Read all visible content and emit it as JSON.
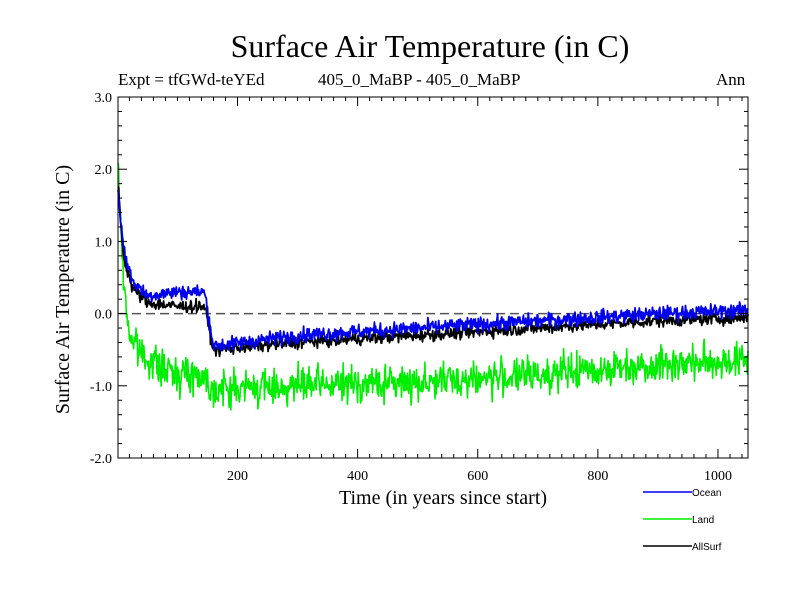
{
  "chart_data": {
    "type": "line",
    "title": "Surface Air Temperature (in C)",
    "experiment_label": "Expt = tfGWd-teYEd",
    "comparison_label": "405_0_MaBP - 405_0_MaBP",
    "season_label": "Ann",
    "xlabel": "Time (in years since start)",
    "ylabel": "Surface Air Temperature (in C)",
    "xlim": [
      1,
      1050
    ],
    "ylim": [
      -2.0,
      3.0
    ],
    "x_ticks": [
      200,
      400,
      600,
      800,
      1000
    ],
    "x_tick_labels": [
      "200",
      "400",
      "600",
      "800",
      "1000"
    ],
    "y_ticks": [
      -2.0,
      -1.0,
      0.0,
      1.0,
      2.0,
      3.0
    ],
    "y_tick_labels": [
      "-2.0",
      "-1.0",
      "0.0",
      "1.0",
      "2.0",
      "3.0"
    ],
    "reference_line": 0.0,
    "series": [
      {
        "name": "Land",
        "color": "#00ee00",
        "noise": 0.17,
        "anchors": [
          [
            1,
            2.0
          ],
          [
            10,
            0.5
          ],
          [
            20,
            -0.3
          ],
          [
            40,
            -0.55
          ],
          [
            80,
            -0.8
          ],
          [
            140,
            -0.85
          ],
          [
            160,
            -1.05
          ],
          [
            300,
            -1.0
          ],
          [
            500,
            -0.95
          ],
          [
            700,
            -0.85
          ],
          [
            900,
            -0.7
          ],
          [
            1050,
            -0.65
          ]
        ],
        "values": []
      },
      {
        "name": "AllSurf",
        "color": "#000000",
        "noise": 0.06,
        "anchors": [
          [
            1,
            1.8
          ],
          [
            10,
            0.8
          ],
          [
            25,
            0.35
          ],
          [
            50,
            0.15
          ],
          [
            100,
            0.1
          ],
          [
            145,
            0.1
          ],
          [
            160,
            -0.5
          ],
          [
            300,
            -0.4
          ],
          [
            500,
            -0.3
          ],
          [
            700,
            -0.2
          ],
          [
            900,
            -0.1
          ],
          [
            1050,
            -0.05
          ]
        ],
        "values": []
      },
      {
        "name": "Ocean",
        "color": "#0000ee",
        "noise": 0.07,
        "anchors": [
          [
            1,
            1.75
          ],
          [
            10,
            0.9
          ],
          [
            25,
            0.45
          ],
          [
            50,
            0.25
          ],
          [
            100,
            0.3
          ],
          [
            145,
            0.3
          ],
          [
            160,
            -0.45
          ],
          [
            300,
            -0.3
          ],
          [
            500,
            -0.2
          ],
          [
            700,
            -0.1
          ],
          [
            900,
            0.0
          ],
          [
            1050,
            0.05
          ]
        ],
        "values": []
      }
    ],
    "legend": [
      {
        "label": "Ocean",
        "color": "#0000ee"
      },
      {
        "label": "Land",
        "color": "#00ee00"
      },
      {
        "label": "AllSurf",
        "color": "#000000"
      }
    ]
  }
}
